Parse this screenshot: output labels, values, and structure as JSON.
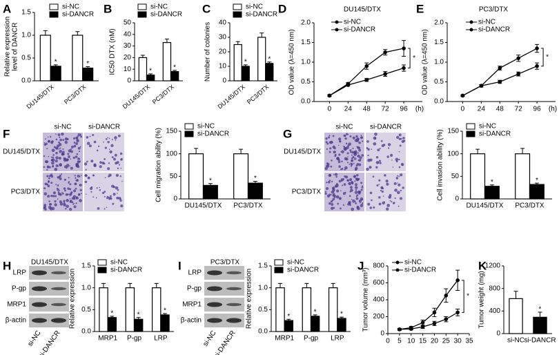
{
  "chart_data": [
    {
      "panel": "A",
      "type": "bar",
      "ylabel": [
        "Relative expression",
        "level of DANCR"
      ],
      "categories": [
        "DU145/DTX",
        "PC3/DTX"
      ],
      "series": [
        {
          "name": "si-NC",
          "color": "#ffffff",
          "values": [
            1.0,
            1.0
          ],
          "errors": [
            0.1,
            0.08
          ]
        },
        {
          "name": "si-DANCR",
          "color": "#000000",
          "values": [
            0.32,
            0.28
          ],
          "errors": [
            0.03,
            0.03
          ],
          "significance": [
            "*",
            "*"
          ]
        }
      ],
      "ylim": [
        0,
        1.5
      ],
      "yticks": [
        {
          "value": 0,
          "label": "0.0"
        },
        {
          "value": 0.5,
          "label": "0.5"
        },
        {
          "value": 1,
          "label": "1.0"
        },
        {
          "value": 1.5,
          "label": "1.5"
        }
      ]
    },
    {
      "panel": "B",
      "type": "bar",
      "ylabel": "IC50 DTX (nM)",
      "categories": [
        "DU145/DTX",
        "PC3/DTX"
      ],
      "series": [
        {
          "name": "si-NC",
          "color": "#ffffff",
          "values": [
            20,
            33
          ],
          "errors": [
            2,
            3
          ]
        },
        {
          "name": "si-DANCR",
          "color": "#000000",
          "values": [
            5,
            8
          ],
          "errors": [
            1,
            1
          ],
          "significance": [
            "*",
            "*"
          ]
        }
      ],
      "ylim": [
        0,
        50
      ],
      "yticks": [
        0,
        10,
        20,
        30,
        40,
        50
      ]
    },
    {
      "panel": "C",
      "type": "bar",
      "ylabel": "Number of colonies",
      "categories": [
        "DU145/DTX",
        "PC3/DTX"
      ],
      "series": [
        {
          "name": "si-NC",
          "color": "#ffffff",
          "values": [
            25,
            30
          ],
          "errors": [
            2,
            3
          ]
        },
        {
          "name": "si-DANCR",
          "color": "#000000",
          "values": [
            10,
            12
          ],
          "errors": [
            1,
            1
          ],
          "significance": [
            "*",
            "*"
          ]
        }
      ],
      "ylim": [
        0,
        40
      ],
      "yticks": [
        0,
        10,
        20,
        30,
        40
      ]
    },
    {
      "panel": "D",
      "type": "line",
      "title": "DU145/DTX",
      "ylabel": "OD value (λ=450 nm)",
      "xlabel": "(h)",
      "x": [
        0,
        24,
        48,
        72,
        96
      ],
      "series": [
        {
          "name": "si-NC",
          "color": "#000000",
          "values": [
            0.15,
            0.45,
            0.9,
            1.25,
            1.35
          ],
          "errors": [
            0.02,
            0.03,
            0.08,
            0.07,
            0.2
          ]
        },
        {
          "name": "si-DANCR",
          "color": "#000000",
          "values": [
            0.15,
            0.42,
            0.55,
            0.7,
            0.85
          ],
          "errors": [
            0.02,
            0.03,
            0.04,
            0.06,
            0.08
          ]
        }
      ],
      "annotation": "*",
      "xlim": [
        -20,
        120
      ],
      "xticks": [
        0,
        24,
        48,
        72,
        96
      ],
      "ylim": [
        0,
        2
      ],
      "yticks": [
        {
          "value": 0,
          "label": "0.0"
        },
        {
          "value": 0.5,
          "label": "0.5"
        },
        {
          "value": 1,
          "label": "1.0"
        },
        {
          "value": 1.5,
          "label": "1.5"
        },
        {
          "value": 2,
          "label": "2.0"
        }
      ]
    },
    {
      "panel": "E",
      "type": "line",
      "title": "PC3/DTX",
      "ylabel": "OD value (λ=450 nm)",
      "xlabel": "(h)",
      "x": [
        0,
        24,
        48,
        72,
        96
      ],
      "series": [
        {
          "name": "si-NC",
          "color": "#000000",
          "values": [
            0.15,
            0.4,
            0.85,
            1.1,
            1.35
          ],
          "errors": [
            0.02,
            0.03,
            0.05,
            0.08,
            0.1
          ]
        },
        {
          "name": "si-DANCR",
          "color": "#000000",
          "values": [
            0.15,
            0.4,
            0.5,
            0.7,
            0.9
          ],
          "errors": [
            0.02,
            0.03,
            0.04,
            0.05,
            0.08
          ]
        }
      ],
      "annotation": "*",
      "xlim": [
        -20,
        120
      ],
      "xticks": [
        0,
        24,
        48,
        72,
        96
      ],
      "ylim": [
        0,
        2
      ],
      "yticks": [
        {
          "value": 0,
          "label": "0.0"
        },
        {
          "value": 0.5,
          "label": "0.5"
        },
        {
          "value": 1,
          "label": "1.0"
        },
        {
          "value": 1.5,
          "label": "1.5"
        },
        {
          "value": 2,
          "label": "2.0"
        }
      ]
    },
    {
      "panel": "F",
      "type": "bar",
      "ylabel": "Cell migration ability (%)",
      "categories": [
        "DU145/DTX",
        "PC3/DTX"
      ],
      "series": [
        {
          "name": "si-NC",
          "color": "#ffffff",
          "values": [
            100,
            100
          ],
          "errors": [
            12,
            10
          ]
        },
        {
          "name": "si-DANCR",
          "color": "#000000",
          "values": [
            30,
            35
          ],
          "errors": [
            4,
            4
          ],
          "significance": [
            "*",
            "*"
          ]
        }
      ],
      "ylim": [
        0,
        150
      ],
      "yticks": [
        0,
        50,
        100,
        150
      ]
    },
    {
      "panel": "G",
      "type": "bar",
      "ylabel": "Cell invasion ability (%)",
      "categories": [
        "DU145/DTX",
        "PC3/DTX"
      ],
      "series": [
        {
          "name": "si-NC",
          "color": "#ffffff",
          "values": [
            100,
            100
          ],
          "errors": [
            10,
            12
          ]
        },
        {
          "name": "si-DANCR",
          "color": "#000000",
          "values": [
            28,
            32
          ],
          "errors": [
            3,
            3
          ],
          "significance": [
            "*",
            "*"
          ]
        }
      ],
      "ylim": [
        0,
        150
      ],
      "yticks": [
        0,
        50,
        100,
        150
      ]
    },
    {
      "panel": "H",
      "type": "bar",
      "ylabel": "Relative expression",
      "categories": [
        "MRP1",
        "P-gp",
        "LRP"
      ],
      "series": [
        {
          "name": "si-NC",
          "color": "#ffffff",
          "values": [
            1.0,
            1.0,
            1.0
          ],
          "errors": [
            0.1,
            0.1,
            0.1
          ]
        },
        {
          "name": "si-DANCR",
          "color": "#000000",
          "values": [
            0.32,
            0.28,
            0.38
          ],
          "errors": [
            0.03,
            0.04,
            0.03
          ],
          "significance": [
            "*",
            "*",
            "*"
          ]
        }
      ],
      "ylim": [
        0,
        1.5
      ],
      "yticks": [
        {
          "value": 0,
          "label": "0.0"
        },
        {
          "value": 0.5,
          "label": "0.5"
        },
        {
          "value": 1,
          "label": "1.0"
        },
        {
          "value": 1.5,
          "label": "1.5"
        }
      ]
    },
    {
      "panel": "I",
      "type": "bar",
      "ylabel": "Relative expression",
      "categories": [
        "MRP1",
        "P-gp",
        "LRP"
      ],
      "series": [
        {
          "name": "si-NC",
          "color": "#ffffff",
          "values": [
            1.0,
            1.0,
            1.0
          ],
          "errors": [
            0.1,
            0.1,
            0.1
          ]
        },
        {
          "name": "si-DANCR",
          "color": "#000000",
          "values": [
            0.25,
            0.35,
            0.3
          ],
          "errors": [
            0.03,
            0.03,
            0.03
          ],
          "significance": [
            "*",
            "*",
            "*"
          ]
        }
      ],
      "ylim": [
        0,
        1.5
      ],
      "yticks": [
        {
          "value": 0,
          "label": "0.0"
        },
        {
          "value": 0.5,
          "label": "0.5"
        },
        {
          "value": 1,
          "label": "1.0"
        },
        {
          "value": 1.5,
          "label": "1.5"
        }
      ]
    },
    {
      "panel": "J",
      "type": "line",
      "ylabel": "Tumor volume (mm³)",
      "x": [
        5,
        10,
        15,
        20,
        25,
        30
      ],
      "series": [
        {
          "name": "si-NC",
          "color": "#000000",
          "values": [
            50,
            70,
            130,
            250,
            450,
            630
          ],
          "errors": [
            10,
            15,
            30,
            50,
            80,
            120
          ]
        },
        {
          "name": "si-DANCR",
          "color": "#000000",
          "values": [
            50,
            55,
            80,
            120,
            170,
            250
          ],
          "errors": [
            10,
            10,
            20,
            25,
            30,
            40
          ]
        }
      ],
      "annotation": "*",
      "xlim": [
        0,
        35
      ],
      "xticks": [
        0,
        5,
        10,
        15,
        20,
        25,
        30,
        35
      ],
      "ylim": [
        0,
        800
      ],
      "yticks": [
        0,
        200,
        400,
        600,
        800
      ]
    },
    {
      "panel": "K",
      "type": "bar",
      "ylabel": "Tumor weight (mg)",
      "categories": [
        "si-NC",
        "si-DANCR"
      ],
      "values": [
        620,
        290
      ],
      "errors": [
        130,
        90
      ],
      "colors": [
        "#ffffff",
        "#000000"
      ],
      "significance": [
        null,
        "*"
      ],
      "ylim": [
        0,
        1200
      ],
      "yticks": [
        0,
        400,
        800,
        1200
      ]
    }
  ],
  "image_panels": [
    {
      "column_labels": [
        "si-NC",
        "si-DANCR"
      ],
      "row_labels": [
        "DU145/DTX",
        "PC3/DTX"
      ]
    },
    {
      "column_labels": [
        "si-NC",
        "si-DANCR"
      ],
      "row_labels": [
        "DU145/DTX",
        "PC3/DTX"
      ]
    },
    {
      "title": "DU145/DTX",
      "row_labels": [
        "LRP",
        "P-gp",
        "MRP1",
        "β-actin"
      ],
      "column_labels": [
        "si-NC",
        "si-DANCR"
      ]
    },
    {
      "title": "PC3/DTX",
      "row_labels": [
        "LRP",
        "P-gp",
        "MRP1",
        "β-actin"
      ],
      "column_labels": [
        "si-NC",
        "si-DANCR"
      ]
    }
  ]
}
